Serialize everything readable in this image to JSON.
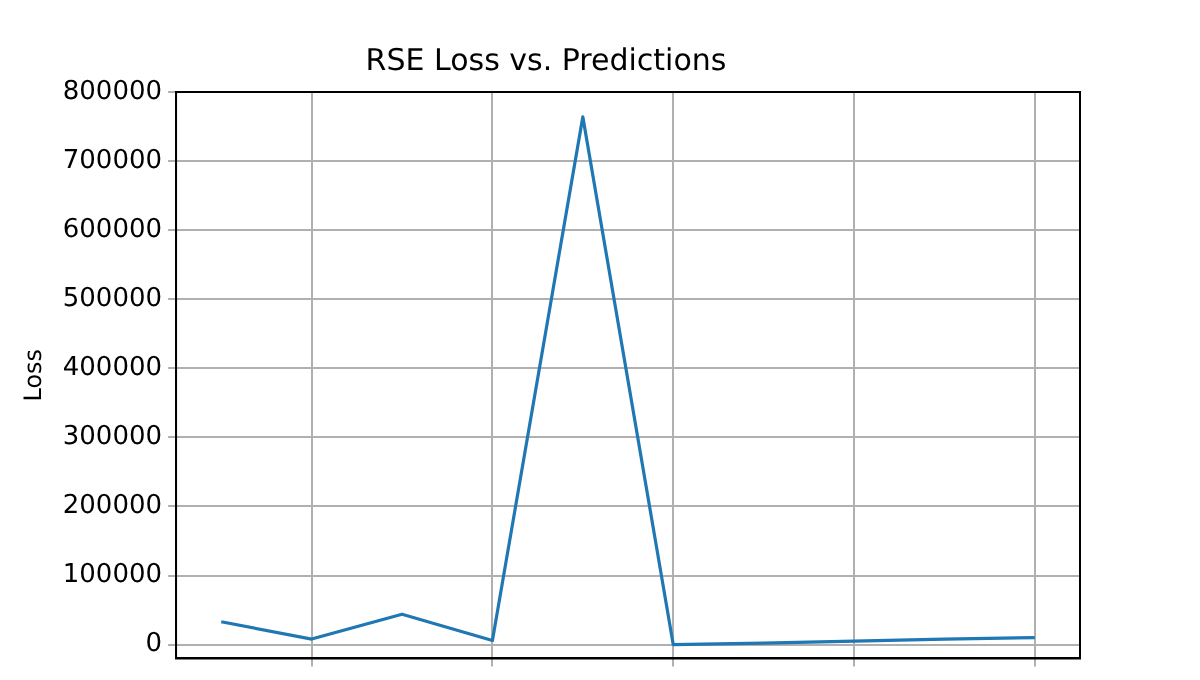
{
  "chart_data": {
    "type": "line",
    "title": "RSE Loss vs. Predictions",
    "ylabel": "Loss",
    "categories": [
      null,
      null,
      null,
      null,
      null,
      null,
      null,
      null,
      null,
      null
    ],
    "series": [
      {
        "color": "#1f77b4",
        "values": [
          33000,
          8000,
          44000,
          6000,
          764000,
          0,
          2000,
          5000,
          8000,
          10000
        ]
      }
    ],
    "ylim": [
      -20000,
      800000
    ],
    "yticks": [
      0,
      100000,
      200000,
      300000,
      400000,
      500000,
      600000,
      700000,
      800000
    ],
    "grid": true,
    "tick_labels": "y",
    "marker": "none",
    "line_style": "solid"
  }
}
